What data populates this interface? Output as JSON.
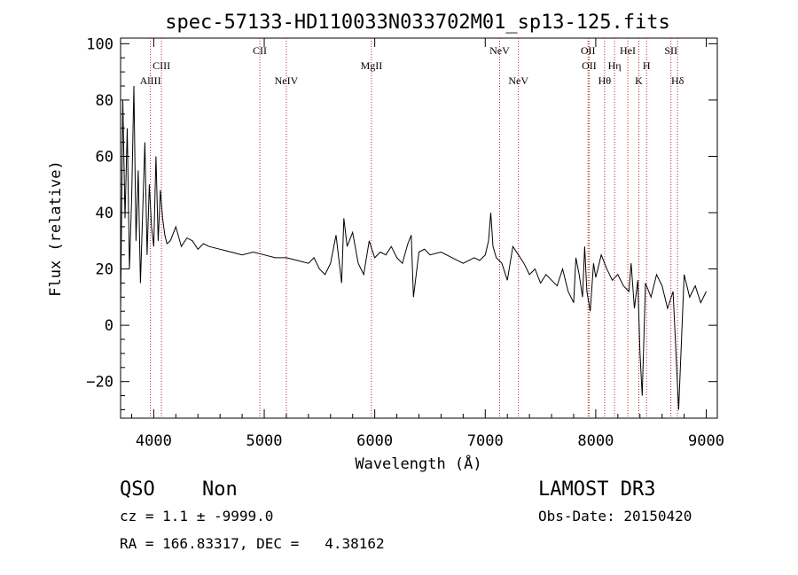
{
  "title": "spec-57133-HD110033N033702M01_sp13-125.fits",
  "footer": {
    "class_label": "QSO",
    "subclass_label": "Non",
    "cz_line": "cz = 1.1 ± -9999.0",
    "coords_line": "RA = 166.83317, DEC =   4.38162",
    "survey_label": "LAMOST DR3",
    "obs_date_line": "Obs-Date: 20150420"
  },
  "chart_data": {
    "type": "line",
    "xlabel": "Wavelength (Å)",
    "ylabel": "Flux (relative)",
    "xlim": [
      3700,
      9100
    ],
    "ylim": [
      -33,
      102
    ],
    "x_ticks": [
      4000,
      5000,
      6000,
      7000,
      8000,
      9000
    ],
    "x_tick_labels": [
      "4000",
      "5000",
      "6000",
      "7000",
      "8000",
      "9000"
    ],
    "y_ticks": [
      -20,
      0,
      20,
      40,
      60,
      80,
      100
    ],
    "y_tick_labels": [
      "−20",
      "0",
      "20",
      "40",
      "60",
      "80",
      "100"
    ],
    "grid": false,
    "line_color": "#000000",
    "marker_color": "#b22222",
    "lines": [
      {
        "label": "AlIII",
        "wavelength": 3970,
        "row": 3
      },
      {
        "label": "CIII",
        "wavelength": 4070,
        "row": 2
      },
      {
        "label": "CII",
        "wavelength": 4960,
        "row": 1
      },
      {
        "label": "NeIV",
        "wavelength": 5200,
        "row": 3
      },
      {
        "label": "MgII",
        "wavelength": 5970,
        "row": 2
      },
      {
        "label": "NeV",
        "wavelength": 7130,
        "row": 1
      },
      {
        "label": "NeV",
        "wavelength": 7300,
        "row": 3
      },
      {
        "label": "OII",
        "wavelength": 7930,
        "row": 1
      },
      {
        "label": "OII",
        "wavelength": 7940,
        "row": 2
      },
      {
        "label": "Hθ",
        "wavelength": 8080,
        "row": 3
      },
      {
        "label": "Hη",
        "wavelength": 8170,
        "row": 2
      },
      {
        "label": "HeI",
        "wavelength": 8290,
        "row": 1
      },
      {
        "label": "K",
        "wavelength": 8390,
        "row": 3
      },
      {
        "label": "H",
        "wavelength": 8460,
        "row": 2
      },
      {
        "label": "SII",
        "wavelength": 8680,
        "row": 1
      },
      {
        "label": "Hδ",
        "wavelength": 8740,
        "row": 3
      }
    ],
    "series": [
      {
        "x": [
          3700,
          3720,
          3740,
          3760,
          3780,
          3800,
          3820,
          3840,
          3860,
          3880,
          3900,
          3920,
          3940,
          3960,
          3980,
          4000,
          4020,
          4040,
          4060,
          4080,
          4100,
          4120,
          4150,
          4200,
          4250,
          4300,
          4350,
          4400,
          4450,
          4500,
          4600,
          4700,
          4800,
          4900,
          5000,
          5100,
          5200,
          5300,
          5400,
          5450,
          5500,
          5550,
          5600,
          5650,
          5700,
          5720,
          5750,
          5800,
          5850,
          5900,
          5950,
          6000,
          6050,
          6100,
          6150,
          6200,
          6250,
          6300,
          6330,
          6350,
          6400,
          6450,
          6500,
          6600,
          6700,
          6800,
          6900,
          6950,
          7000,
          7030,
          7050,
          7070,
          7100,
          7150,
          7200,
          7250,
          7300,
          7350,
          7400,
          7450,
          7500,
          7550,
          7600,
          7650,
          7700,
          7750,
          7800,
          7820,
          7850,
          7880,
          7900,
          7920,
          7950,
          7980,
          8000,
          8050,
          8100,
          8150,
          8200,
          8250,
          8300,
          8320,
          8350,
          8380,
          8400,
          8420,
          8450,
          8500,
          8550,
          8600,
          8650,
          8700,
          8750,
          8800,
          8850,
          8900,
          8950,
          9000
        ],
        "y": [
          5,
          80,
          38,
          70,
          20,
          45,
          85,
          30,
          55,
          15,
          40,
          65,
          25,
          50,
          35,
          28,
          60,
          30,
          48,
          38,
          32,
          29,
          30,
          35,
          28,
          31,
          30,
          27,
          29,
          28,
          27,
          26,
          25,
          26,
          25,
          24,
          24,
          23,
          22,
          24,
          20,
          18,
          22,
          32,
          15,
          38,
          28,
          33,
          22,
          18,
          30,
          24,
          26,
          25,
          28,
          24,
          22,
          29,
          32,
          10,
          26,
          27,
          25,
          26,
          24,
          22,
          24,
          23,
          25,
          30,
          40,
          28,
          24,
          22,
          16,
          28,
          25,
          22,
          18,
          20,
          15,
          18,
          16,
          14,
          20,
          12,
          8,
          24,
          18,
          10,
          28,
          12,
          5,
          22,
          17,
          25,
          20,
          16,
          18,
          14,
          12,
          22,
          6,
          16,
          -10,
          -25,
          15,
          10,
          18,
          14,
          6,
          12,
          -30,
          18,
          10,
          14,
          8,
          12
        ]
      }
    ]
  }
}
